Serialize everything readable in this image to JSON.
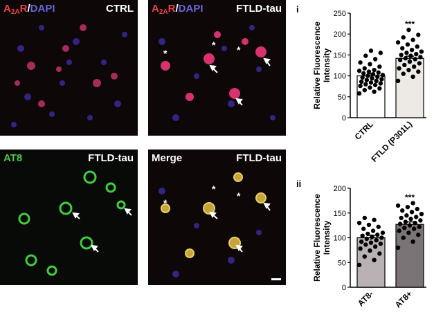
{
  "panels": {
    "p1": {
      "label_left": "A2AR/DAPI",
      "label_right": "CTRL"
    },
    "p2": {
      "label_left": "A2AR/DAPI",
      "label_right": "FTLD-tau"
    },
    "p3": {
      "label_left": "AT8",
      "label_right": "FTLD-tau"
    },
    "p4": {
      "label_left": "Merge",
      "label_right": "FTLD-tau"
    }
  },
  "panel_text": {
    "a": "A",
    "sub": "2A",
    "r": "R",
    "slash": "/",
    "dapi": "DAPI"
  },
  "chart_data": [
    {
      "type": "bar",
      "panel_letter": "i",
      "ylabel_line1": "Relative Fluorescence",
      "ylabel_line2": "Intensity",
      "ylim": [
        0,
        250
      ],
      "yticks": [
        0,
        50,
        100,
        150,
        200,
        250
      ],
      "categories": [
        "CTRL",
        "FTLD (P301L)"
      ],
      "values": [
        100,
        142
      ],
      "errors": [
        5,
        5
      ],
      "bar_colors": [
        "#ffffff",
        "#ede9e4"
      ],
      "significance": [
        "",
        "***"
      ],
      "points": [
        [
          58,
          62,
          66,
          70,
          72,
          76,
          78,
          80,
          82,
          84,
          86,
          88,
          90,
          92,
          94,
          96,
          98,
          100,
          102,
          104,
          106,
          108,
          110,
          112,
          114,
          118,
          122,
          128,
          132,
          140,
          148,
          155,
          160
        ],
        [
          88,
          98,
          105,
          110,
          114,
          118,
          122,
          126,
          130,
          134,
          138,
          140,
          142,
          145,
          148,
          150,
          152,
          155,
          158,
          162,
          166,
          170,
          175,
          180,
          186,
          192,
          198,
          210
        ]
      ]
    },
    {
      "type": "bar",
      "panel_letter": "ii",
      "ylabel_line1": "Relative Fluorescence",
      "ylabel_line2": "Intensity",
      "ylim": [
        0,
        200
      ],
      "yticks": [
        0,
        50,
        100,
        150,
        200
      ],
      "categories": [
        "AT8-",
        "AT8+"
      ],
      "values": [
        100,
        127
      ],
      "errors": [
        5,
        5
      ],
      "bar_colors": [
        "#b9b1b3",
        "#7b7476"
      ],
      "significance": [
        "",
        "***"
      ],
      "points": [
        [
          45,
          55,
          62,
          68,
          74,
          78,
          82,
          86,
          88,
          90,
          92,
          95,
          98,
          100,
          102,
          104,
          106,
          108,
          110,
          114,
          118,
          122,
          126,
          130,
          136,
          140
        ],
        [
          80,
          92,
          100,
          106,
          110,
          114,
          118,
          120,
          122,
          125,
          128,
          130,
          132,
          135,
          138,
          140,
          142,
          145,
          148,
          152,
          155,
          158,
          162,
          165,
          170
        ]
      ]
    }
  ]
}
